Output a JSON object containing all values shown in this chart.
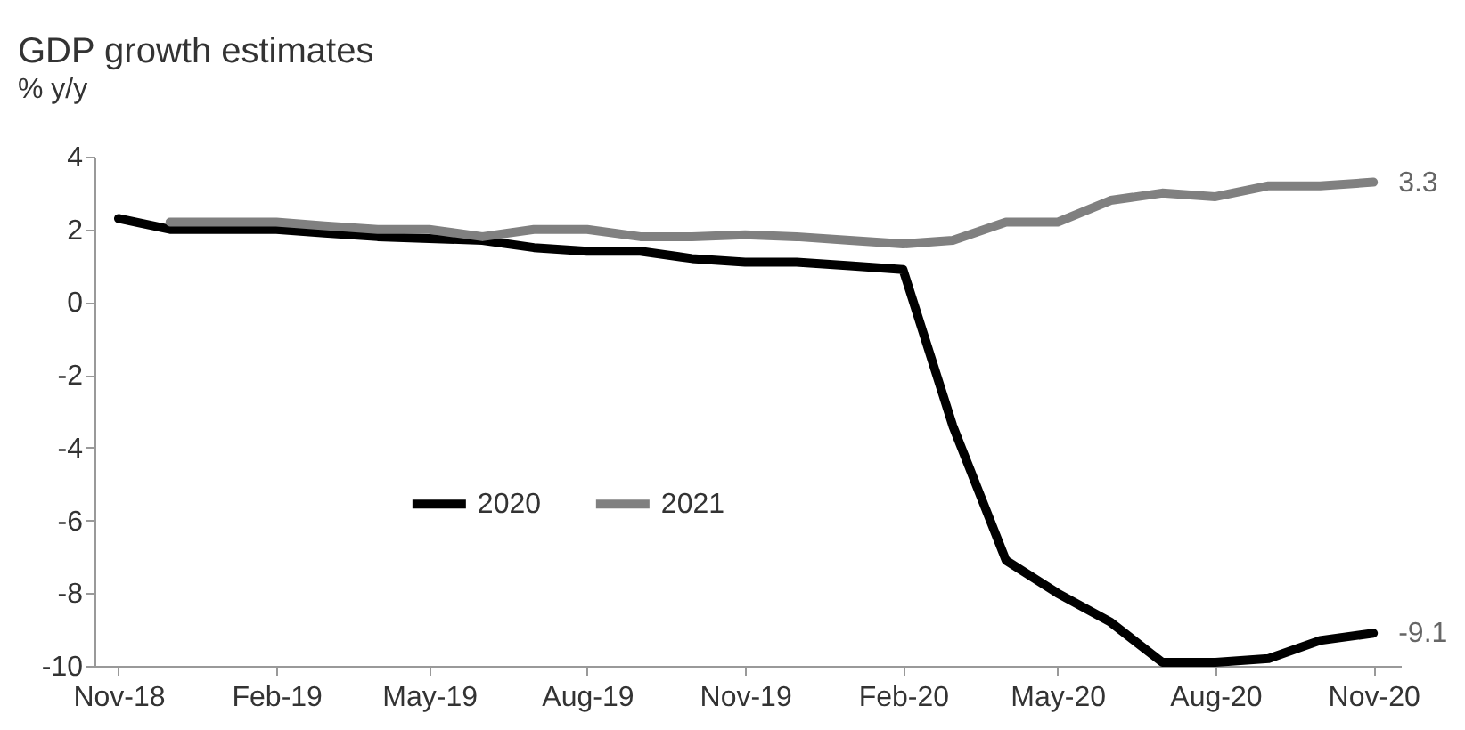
{
  "chart_data": {
    "type": "line",
    "title": "GDP growth estimates",
    "subtitle": "% y/y",
    "x": [
      "2018-11-15",
      "2018-12-15",
      "2019-01-15",
      "2019-02-15",
      "2019-03-15",
      "2019-04-15",
      "2019-05-15",
      "2019-06-15",
      "2019-07-15",
      "2019-08-15",
      "2019-09-15",
      "2019-10-15",
      "2019-11-15",
      "2019-12-15",
      "2020-01-15",
      "2020-02-15",
      "2020-03-15",
      "2020-04-15",
      "2020-05-15",
      "2020-06-15",
      "2020-07-15",
      "2020-08-15",
      "2020-09-15",
      "2020-10-15",
      "2020-11-15"
    ],
    "series": [
      {
        "name": "2020",
        "color": "#000000",
        "values": [
          2.3,
          2.0,
          2.0,
          2.0,
          1.9,
          1.8,
          1.75,
          1.7,
          1.5,
          1.4,
          1.4,
          1.2,
          1.1,
          1.1,
          1.0,
          0.9,
          -3.4,
          -7.1,
          -8.0,
          -8.8,
          -9.9,
          -9.9,
          -9.8,
          -9.3,
          -9.1
        ]
      },
      {
        "name": "2021",
        "color": "#808080",
        "values": [
          null,
          2.2,
          2.2,
          2.2,
          2.1,
          2.0,
          2.0,
          1.8,
          2.0,
          2.0,
          1.8,
          1.8,
          1.85,
          1.8,
          1.7,
          1.6,
          1.7,
          2.2,
          2.2,
          2.8,
          3.0,
          2.9,
          3.2,
          3.2,
          3.3
        ]
      }
    ],
    "xlim": [
      "2018-11-01",
      "2020-12-01"
    ],
    "xticks": [
      {
        "value": "2018-11-15",
        "label": "Nov-18"
      },
      {
        "value": "2019-02-15",
        "label": "Feb-19"
      },
      {
        "value": "2019-05-15",
        "label": "May-19"
      },
      {
        "value": "2019-08-15",
        "label": "Aug-19"
      },
      {
        "value": "2019-11-15",
        "label": "Nov-19"
      },
      {
        "value": "2020-02-15",
        "label": "Feb-20"
      },
      {
        "value": "2020-05-15",
        "label": "May-20"
      },
      {
        "value": "2020-08-15",
        "label": "Aug-20"
      },
      {
        "value": "2020-11-15",
        "label": "Nov-20"
      }
    ],
    "ylim": [
      -10,
      4
    ],
    "yticks": [
      -10,
      -8,
      -6,
      -4,
      -2,
      0,
      2,
      4
    ],
    "annotations": [
      {
        "text": "3.3",
        "x": "2020-11-15",
        "y": 3.3
      },
      {
        "text": "-9.1",
        "x": "2020-11-15",
        "y": -9.1
      }
    ],
    "legend": "center",
    "grid": false,
    "marker": "none",
    "line_style": "solid"
  }
}
